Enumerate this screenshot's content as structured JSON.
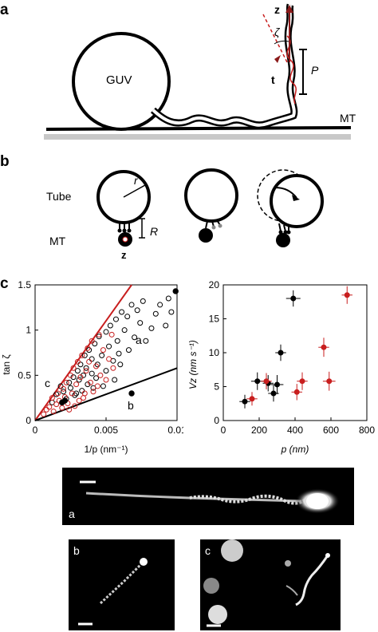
{
  "panel_a": {
    "label": "a",
    "guv_label": "GUV",
    "mt_label": "MT",
    "z_label": "z",
    "zeta_label": "ζ",
    "t_label": "t",
    "p_label": "P"
  },
  "panel_b": {
    "label": "b",
    "tube_label": "Tube",
    "mt_label": "MT",
    "r_label": "r",
    "big_r_label": "R",
    "z_label": "z"
  },
  "panel_c": {
    "label": "c",
    "left_plot": {
      "xlabel": "1/p (nm⁻¹)",
      "ylabel": "tan ζ",
      "region_labels": [
        "a",
        "b",
        "c"
      ]
    },
    "right_plot": {
      "xlabel": "p (nm)",
      "ylabel": "Vz (nm s⁻¹)"
    }
  },
  "micrographs": {
    "a_label": "a",
    "b_label": "b",
    "c_label": "c"
  },
  "colors": {
    "red": "#c81e1e",
    "black": "#000000",
    "grey_floor": "#c8c8c8"
  },
  "chart_data": [
    {
      "type": "scatter",
      "title": "",
      "xlabel": "1/p (nm⁻¹)",
      "ylabel": "tan ζ",
      "xlim": [
        0,
        0.01
      ],
      "ylim": [
        0,
        1.5
      ],
      "xticks": [
        "0",
        "0.005",
        "0.01"
      ],
      "yticks": [
        "0",
        "0.5",
        "1",
        "1.5"
      ],
      "lines": [
        {
          "color": "red",
          "x": [
            0,
            0.0068
          ],
          "y": [
            0,
            1.5
          ]
        },
        {
          "color": "black",
          "x": [
            0,
            0.01
          ],
          "y": [
            0,
            0.58
          ]
        }
      ],
      "series": [
        {
          "color": "black",
          "marker": "open",
          "points": [
            [
              0.0012,
              0.2
            ],
            [
              0.0015,
              0.29
            ],
            [
              0.0018,
              0.38
            ],
            [
              0.002,
              0.32
            ],
            [
              0.0022,
              0.24
            ],
            [
              0.0024,
              0.42
            ],
            [
              0.0025,
              0.36
            ],
            [
              0.0027,
              0.48
            ],
            [
              0.0028,
              0.28
            ],
            [
              0.003,
              0.55
            ],
            [
              0.0031,
              0.45
            ],
            [
              0.0032,
              0.62
            ],
            [
              0.0033,
              0.33
            ],
            [
              0.0035,
              0.72
            ],
            [
              0.0036,
              0.58
            ],
            [
              0.0037,
              0.4
            ],
            [
              0.0038,
              0.78
            ],
            [
              0.004,
              0.68
            ],
            [
              0.004,
              0.52
            ],
            [
              0.0042,
              0.85
            ],
            [
              0.0043,
              0.47
            ],
            [
              0.0044,
              0.62
            ],
            [
              0.0045,
              0.93
            ],
            [
              0.0047,
              0.72
            ],
            [
              0.0048,
              0.38
            ],
            [
              0.005,
              0.98
            ],
            [
              0.005,
              0.55
            ],
            [
              0.0052,
              0.82
            ],
            [
              0.0053,
              1.05
            ],
            [
              0.0055,
              0.66
            ],
            [
              0.0056,
              0.45
            ],
            [
              0.0057,
              1.12
            ],
            [
              0.0058,
              0.88
            ],
            [
              0.006,
              0.62
            ],
            [
              0.0061,
              1.2
            ],
            [
              0.0063,
              1.0
            ],
            [
              0.0065,
              1.15
            ],
            [
              0.0066,
              0.78
            ],
            [
              0.0068,
              1.28
            ],
            [
              0.007,
              0.92
            ],
            [
              0.0072,
              1.22
            ],
            [
              0.0074,
              1.08
            ],
            [
              0.0076,
              1.32
            ],
            [
              0.0078,
              0.88
            ],
            [
              0.0082,
              1.02
            ],
            [
              0.0085,
              1.18
            ],
            [
              0.0088,
              1.28
            ],
            [
              0.0092,
              1.05
            ],
            [
              0.0094,
              1.35
            ],
            [
              0.0096,
              1.2
            ],
            [
              0.0029,
              0.3
            ],
            [
              0.0034,
              0.5
            ],
            [
              0.0041,
              0.36
            ],
            [
              0.0059,
              0.74
            ]
          ]
        },
        {
          "color": "red",
          "marker": "open",
          "points": [
            [
              0.0006,
              0.07
            ],
            [
              0.0008,
              0.12
            ],
            [
              0.001,
              0.15
            ],
            [
              0.0012,
              0.25
            ],
            [
              0.0013,
              0.1
            ],
            [
              0.0015,
              0.18
            ],
            [
              0.0016,
              0.3
            ],
            [
              0.0017,
              0.22
            ],
            [
              0.0019,
              0.14
            ],
            [
              0.002,
              0.35
            ],
            [
              0.0021,
              0.26
            ],
            [
              0.0022,
              0.42
            ],
            [
              0.0023,
              0.19
            ],
            [
              0.0025,
              0.5
            ],
            [
              0.0026,
              0.3
            ],
            [
              0.0027,
              0.58
            ],
            [
              0.0028,
              0.16
            ],
            [
              0.0029,
              0.4
            ],
            [
              0.003,
              0.65
            ],
            [
              0.0031,
              0.22
            ],
            [
              0.0032,
              0.48
            ],
            [
              0.0033,
              0.72
            ],
            [
              0.0035,
              0.3
            ],
            [
              0.0036,
              0.55
            ],
            [
              0.0037,
              0.8
            ],
            [
              0.0039,
              0.42
            ],
            [
              0.004,
              0.88
            ],
            [
              0.0041,
              0.32
            ],
            [
              0.0043,
              0.6
            ],
            [
              0.0045,
              0.95
            ],
            [
              0.0046,
              0.5
            ],
            [
              0.0048,
              0.78
            ],
            [
              0.005,
              0.45
            ],
            [
              0.0052,
              0.68
            ],
            [
              0.0054,
              0.95
            ],
            [
              0.0055,
              0.58
            ],
            [
              0.0024,
              0.12
            ],
            [
              0.0034,
              0.25
            ],
            [
              0.0038,
              0.65
            ],
            [
              0.0044,
              0.38
            ]
          ]
        },
        {
          "color": "black",
          "marker": "filled",
          "points": [
            [
              0.0019,
              0.2
            ],
            [
              0.0021,
              0.22
            ],
            [
              0.0068,
              0.3
            ],
            [
              0.0099,
              1.43
            ]
          ]
        }
      ]
    },
    {
      "type": "scatter",
      "title": "",
      "xlabel": "p (nm)",
      "ylabel": "Vz (nm s⁻¹)",
      "xlim": [
        0,
        800
      ],
      "ylim": [
        0,
        20
      ],
      "xticks": [
        "0",
        "200",
        "400",
        "600",
        "800"
      ],
      "yticks": [
        "0",
        "5",
        "10",
        "15",
        "20"
      ],
      "series": [
        {
          "color": "black",
          "points": [
            {
              "x": 120,
              "y": 2.8,
              "xerr": 30,
              "yerr": 1.0
            },
            {
              "x": 190,
              "y": 5.8,
              "xerr": 35,
              "yerr": 1.3
            },
            {
              "x": 250,
              "y": 5.5,
              "xerr": 30,
              "yerr": 1.2
            },
            {
              "x": 280,
              "y": 4.0,
              "xerr": 30,
              "yerr": 1.2
            },
            {
              "x": 300,
              "y": 5.3,
              "xerr": 35,
              "yerr": 1.4
            },
            {
              "x": 320,
              "y": 10.0,
              "xerr": 30,
              "yerr": 1.2
            },
            {
              "x": 390,
              "y": 18.0,
              "xerr": 40,
              "yerr": 1.2
            }
          ]
        },
        {
          "color": "red",
          "points": [
            {
              "x": 160,
              "y": 3.2,
              "xerr": 30,
              "yerr": 1.0
            },
            {
              "x": 240,
              "y": 5.8,
              "xerr": 30,
              "yerr": 1.2
            },
            {
              "x": 410,
              "y": 4.2,
              "xerr": 30,
              "yerr": 1.2
            },
            {
              "x": 440,
              "y": 5.8,
              "xerr": 30,
              "yerr": 1.3
            },
            {
              "x": 560,
              "y": 10.8,
              "xerr": 30,
              "yerr": 1.4
            },
            {
              "x": 590,
              "y": 5.8,
              "xerr": 35,
              "yerr": 1.4
            },
            {
              "x": 690,
              "y": 18.5,
              "xerr": 30,
              "yerr": 1.3
            }
          ]
        }
      ]
    }
  ]
}
